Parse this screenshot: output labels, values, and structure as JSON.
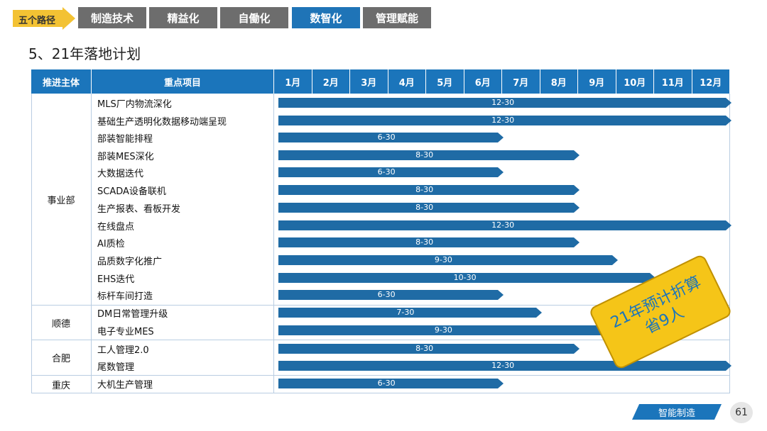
{
  "nav": {
    "badge": "五个路径",
    "tabs": [
      {
        "label": "制造技术",
        "active": false
      },
      {
        "label": "精益化",
        "active": false
      },
      {
        "label": "自働化",
        "active": false
      },
      {
        "label": "数智化",
        "active": true
      },
      {
        "label": "管理赋能",
        "active": false
      }
    ]
  },
  "page_title": "5、21年落地计划",
  "table": {
    "headers": {
      "owner": "推进主体",
      "project": "重点项目"
    },
    "months": [
      "1月",
      "2月",
      "3月",
      "4月",
      "5月",
      "6月",
      "7月",
      "8月",
      "9月",
      "10月",
      "11月",
      "12月"
    ],
    "groups": [
      {
        "name": "事业部",
        "rows": [
          {
            "project": "MLS厂内物流深化",
            "end": "12-30",
            "end_month": 12,
            "end_day": 30
          },
          {
            "project": "基础生产透明化数据移动端呈现",
            "end": "12-30",
            "end_month": 12,
            "end_day": 30
          },
          {
            "project": "部装智能排程",
            "end": "6-30",
            "end_month": 6,
            "end_day": 30
          },
          {
            "project": "部装MES深化",
            "end": "8-30",
            "end_month": 8,
            "end_day": 30
          },
          {
            "project": "大数据迭代",
            "end": "6-30",
            "end_month": 6,
            "end_day": 30
          },
          {
            "project": "SCADA设备联机",
            "end": "8-30",
            "end_month": 8,
            "end_day": 30
          },
          {
            "project": "生产报表、看板开发",
            "end": "8-30",
            "end_month": 8,
            "end_day": 30
          },
          {
            "project": "在线盘点",
            "end": "12-30",
            "end_month": 12,
            "end_day": 30
          },
          {
            "project": "AI质检",
            "end": "8-30",
            "end_month": 8,
            "end_day": 30
          },
          {
            "project": "品质数字化推广",
            "end": "9-30",
            "end_month": 9,
            "end_day": 30
          },
          {
            "project": "EHS迭代",
            "end": "10-30",
            "end_month": 10,
            "end_day": 30
          },
          {
            "project": "标杆车间打造",
            "end": "6-30",
            "end_month": 6,
            "end_day": 30
          }
        ]
      },
      {
        "name": "顺德",
        "rows": [
          {
            "project": "DM日常管理升级",
            "end": "7-30",
            "end_month": 7,
            "end_day": 30
          },
          {
            "project": "电子专业MES",
            "end": "9-30",
            "end_month": 9,
            "end_day": 30
          }
        ]
      },
      {
        "name": "合肥",
        "rows": [
          {
            "project": "工人管理2.0",
            "end": "8-30",
            "end_month": 8,
            "end_day": 30
          },
          {
            "project": "尾数管理",
            "end": "12-30",
            "end_month": 12,
            "end_day": 30
          }
        ]
      },
      {
        "name": "重庆",
        "rows": [
          {
            "project": "大机生产管理",
            "end": "6-30",
            "end_month": 6,
            "end_day": 30
          }
        ]
      }
    ]
  },
  "note": {
    "line1": "21年预计折算",
    "line2": "省9人"
  },
  "footer": {
    "tag": "智能制造",
    "page_number": "61"
  },
  "colors": {
    "header": "#1b75bb",
    "bar": "#1f6ba5",
    "badge": "#f3c233",
    "note": "#f5c518",
    "nav_tab": "#6d6d6d",
    "nav_active": "#1f74b7"
  }
}
